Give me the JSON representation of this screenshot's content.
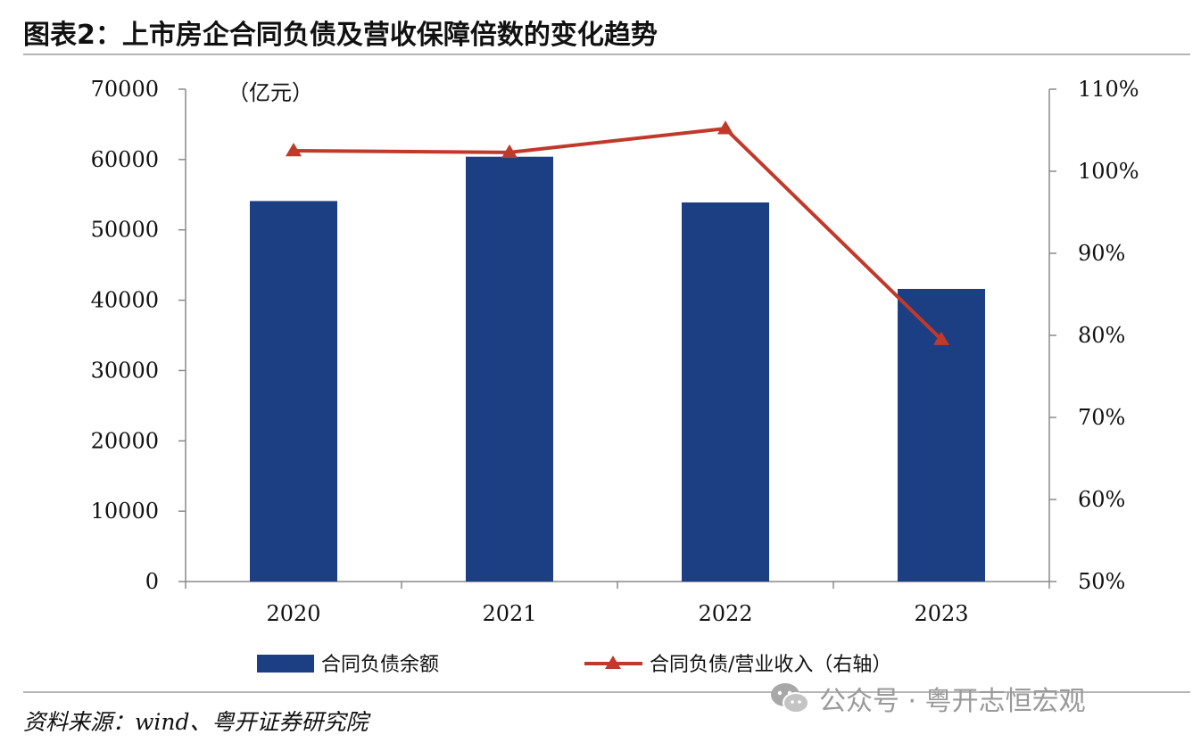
{
  "title": "图表2：上市房企合同负债及营收保障倍数的变化趋势",
  "source": "资料来源：wind、粤开证券研究院",
  "watermark": {
    "icon": "wechat-icon",
    "text": "公众号 · 粤开志恒宏观"
  },
  "colors": {
    "bar": "#1b3f82",
    "line": "#c0392b",
    "rule": "#b5b5b5"
  },
  "chart_data": {
    "type": "bar+line",
    "categories": [
      "2020",
      "2021",
      "2022",
      "2023"
    ],
    "unit_label": "（亿元）",
    "left_axis": {
      "min": 0,
      "max": 70000,
      "ticks": [
        "0",
        "10000",
        "20000",
        "30000",
        "40000",
        "50000",
        "60000",
        "70000"
      ]
    },
    "right_axis": {
      "min": 50,
      "max": 110,
      "ticks": [
        "50%",
        "60%",
        "70%",
        "80%",
        "90%",
        "100%",
        "110%"
      ]
    },
    "series": [
      {
        "name": "合同负债余额",
        "type": "bar",
        "axis": "left",
        "values": [
          54100,
          60400,
          53900,
          41600
        ]
      },
      {
        "name": "合同负债/营业收入（右轴）",
        "type": "line",
        "axis": "right",
        "marker": "triangle",
        "values": [
          102.5,
          102.3,
          105.2,
          79.5
        ]
      }
    ],
    "grid": false,
    "legend": "bottom"
  }
}
